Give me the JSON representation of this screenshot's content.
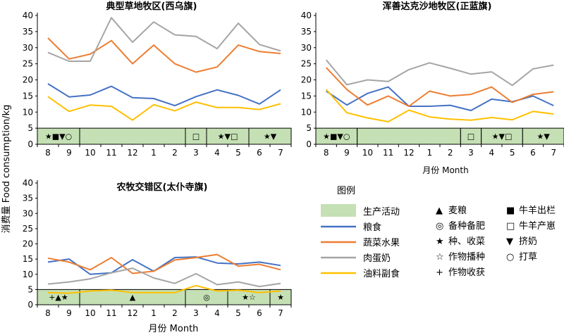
{
  "y_axis_label": "消费量  Food consumption/kg",
  "x_axis_label": "月份 Month",
  "colors": {
    "activity_band": "#c5e0b4",
    "粮食": "#4472c4",
    "蔬菜水果": "#ed7d31",
    "肉蛋奶": "#a5a5a5",
    "油料副食": "#ffc000"
  },
  "chart_data": [
    {
      "type": "line",
      "title": "典型草地牧区(西乌旗)",
      "x": [
        "8",
        "9",
        "10",
        "11",
        "12",
        "1",
        "2",
        "3",
        "4",
        "5",
        "6",
        "7"
      ],
      "ylim": [
        0,
        40
      ],
      "yticks": [
        0,
        5,
        10,
        15,
        20,
        25,
        30,
        35,
        40
      ],
      "series": [
        {
          "name": "粮食",
          "values": [
            18.8,
            14.7,
            15.3,
            18.0,
            14.5,
            14.2,
            12.0,
            14.8,
            16.9,
            15.2,
            12.5,
            16.9
          ]
        },
        {
          "name": "蔬菜水果",
          "values": [
            33.0,
            26.5,
            28.0,
            32.2,
            25.0,
            30.8,
            25.0,
            22.4,
            24.0,
            30.8,
            28.8,
            28.2
          ]
        },
        {
          "name": "肉蛋奶",
          "values": [
            28.5,
            25.8,
            25.8,
            39.3,
            31.7,
            38.0,
            34.0,
            33.5,
            29.7,
            37.6,
            31.0,
            29.0
          ]
        },
        {
          "name": "油料副食",
          "values": [
            14.8,
            10.2,
            12.2,
            11.8,
            7.5,
            12.3,
            10.4,
            13.1,
            11.4,
            11.4,
            10.8,
            12.6
          ]
        }
      ],
      "activities": [
        {
          "from": 0,
          "to": 2,
          "symbols": "★■▼○"
        },
        {
          "from": 2,
          "to": 7,
          "symbols": ""
        },
        {
          "from": 7,
          "to": 8,
          "symbols": "□"
        },
        {
          "from": 8,
          "to": 10,
          "symbols": "★▼□"
        },
        {
          "from": 10,
          "to": 12,
          "symbols": "★▼"
        }
      ]
    },
    {
      "type": "line",
      "title": "浑善达克沙地牧区(正蓝旗)",
      "x": [
        "8",
        "9",
        "10",
        "11",
        "12",
        "1",
        "2",
        "3",
        "4",
        "5",
        "6",
        "7"
      ],
      "ylim": [
        0,
        40
      ],
      "yticks": [
        0,
        5,
        10,
        15,
        20,
        25,
        30,
        35,
        40
      ],
      "series": [
        {
          "name": "粮食",
          "values": [
            16.5,
            12.2,
            15.8,
            17.8,
            11.8,
            11.8,
            12.1,
            10.5,
            14.0,
            13.2,
            15.0,
            12.0
          ]
        },
        {
          "name": "蔬菜水果",
          "values": [
            23.8,
            17.0,
            12.2,
            15.0,
            11.8,
            16.5,
            15.0,
            15.5,
            17.8,
            13.0,
            15.5,
            16.3
          ]
        },
        {
          "name": "肉蛋奶",
          "values": [
            26.2,
            18.5,
            20.0,
            19.5,
            23.2,
            25.3,
            23.6,
            21.8,
            22.5,
            18.3,
            23.4,
            24.6
          ]
        },
        {
          "name": "油料副食",
          "values": [
            17.0,
            9.8,
            8.2,
            7.0,
            10.6,
            8.5,
            7.8,
            7.5,
            8.3,
            7.6,
            10.2,
            9.4
          ]
        }
      ],
      "activities": [
        {
          "from": 0,
          "to": 2,
          "symbols": "★■▼○"
        },
        {
          "from": 2,
          "to": 7,
          "symbols": ""
        },
        {
          "from": 7,
          "to": 8,
          "symbols": "□"
        },
        {
          "from": 8,
          "to": 10,
          "symbols": "★▼□"
        },
        {
          "from": 10,
          "to": 12,
          "symbols": "★▼"
        }
      ]
    },
    {
      "type": "line",
      "title": "农牧交错区(太仆寺旗)",
      "x": [
        "8",
        "9",
        "10",
        "11",
        "12",
        "1",
        "2",
        "3",
        "4",
        "5",
        "6",
        "7"
      ],
      "ylim": [
        0,
        40
      ],
      "yticks": [
        0,
        5,
        10,
        15,
        20,
        25,
        30,
        35,
        40
      ],
      "series": [
        {
          "name": "粮食",
          "values": [
            14.0,
            15.0,
            10.0,
            10.5,
            14.8,
            11.0,
            15.5,
            15.7,
            13.7,
            13.4,
            14.0,
            12.9
          ]
        },
        {
          "name": "蔬菜水果",
          "values": [
            15.3,
            14.0,
            11.5,
            15.5,
            10.3,
            11.0,
            14.7,
            15.5,
            16.5,
            12.7,
            13.3,
            11.5
          ]
        },
        {
          "name": "肉蛋奶",
          "values": [
            6.8,
            7.5,
            8.5,
            10.5,
            12.0,
            8.8,
            7.0,
            10.2,
            6.6,
            7.5,
            6.0,
            7.0
          ]
        },
        {
          "name": "油料副食",
          "values": [
            4.0,
            3.8,
            4.5,
            4.8,
            4.0,
            4.0,
            4.0,
            6.3,
            4.5,
            4.8,
            4.0,
            4.5
          ]
        }
      ],
      "activities": [
        {
          "from": 0,
          "to": 2,
          "symbols": "+▲★"
        },
        {
          "from": 2,
          "to": 7,
          "symbols": "▲"
        },
        {
          "from": 7,
          "to": 9,
          "symbols": "◎"
        },
        {
          "from": 9,
          "to": 11,
          "symbols": "★☆"
        },
        {
          "from": 11,
          "to": 12,
          "symbols": "★"
        }
      ]
    }
  ],
  "legend": {
    "title": "图例",
    "activity_label": "生产活动",
    "series_labels": [
      "粮食",
      "蔬菜水果",
      "肉蛋奶",
      "油料副食"
    ],
    "symbols_mid": [
      {
        "symbol": "▲",
        "label": "麦粮"
      },
      {
        "symbol": "◎",
        "label": "备种备肥"
      },
      {
        "symbol": "★",
        "label": "种、收菜"
      },
      {
        "symbol": "☆",
        "label": "作物播种"
      },
      {
        "symbol": "+",
        "label": "作物收获"
      }
    ],
    "symbols_right": [
      {
        "symbol": "■",
        "label": "牛羊出栏"
      },
      {
        "symbol": "□",
        "label": "牛羊产崽"
      },
      {
        "symbol": "▼",
        "label": "挤奶"
      },
      {
        "symbol": "○",
        "label": "打草"
      }
    ]
  }
}
